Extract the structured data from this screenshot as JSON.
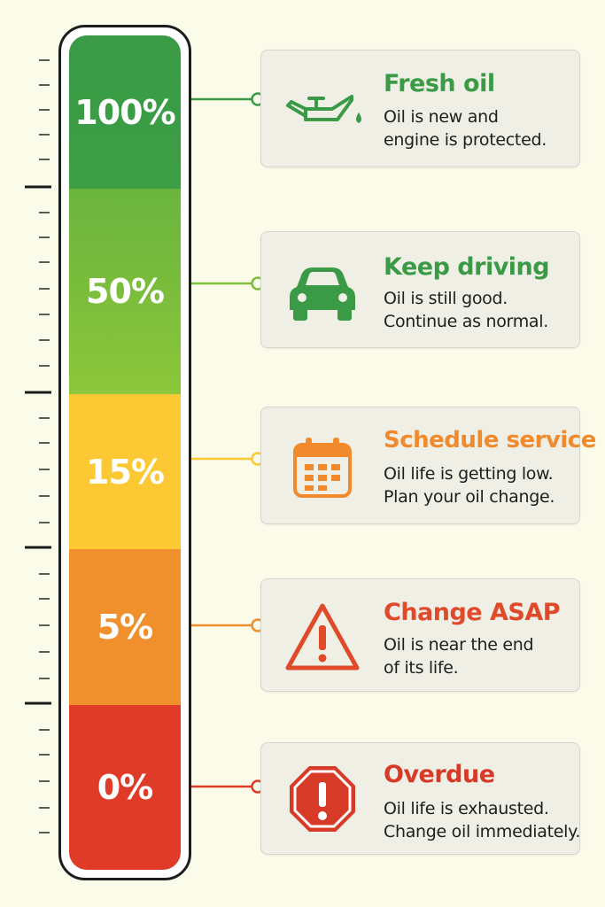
{
  "levels": [
    {
      "percent": "100%",
      "title": "Fresh oil",
      "desc": [
        "Oil is new and",
        "engine is protected."
      ],
      "color": "#3a9a46",
      "title_color": "#3a9a46",
      "icon": "oil-can-icon"
    },
    {
      "percent": "50%",
      "title": "Keep driving",
      "desc": [
        "Oil is still good.",
        "Continue as normal."
      ],
      "color": "#7cbf3a",
      "title_color": "#3a9a46",
      "icon": "car-icon"
    },
    {
      "percent": "15%",
      "title": "Schedule service",
      "desc": [
        "Oil life is getting low.",
        "Plan your oil change."
      ],
      "color": "#fcc934",
      "title_color": "#f08a2c",
      "icon": "calendar-icon"
    },
    {
      "percent": "5%",
      "title": "Change ASAP",
      "desc": [
        "Oil is near the end",
        "of its life."
      ],
      "color": "#f0902c",
      "title_color": "#e04a2a",
      "icon": "warning-triangle-icon"
    },
    {
      "percent": "0%",
      "title": "Overdue",
      "desc": [
        "Oil life is exhausted.",
        "Change oil immediately."
      ],
      "color": "#e03a28",
      "title_color": "#d83a28",
      "icon": "stop-octagon-icon"
    }
  ]
}
